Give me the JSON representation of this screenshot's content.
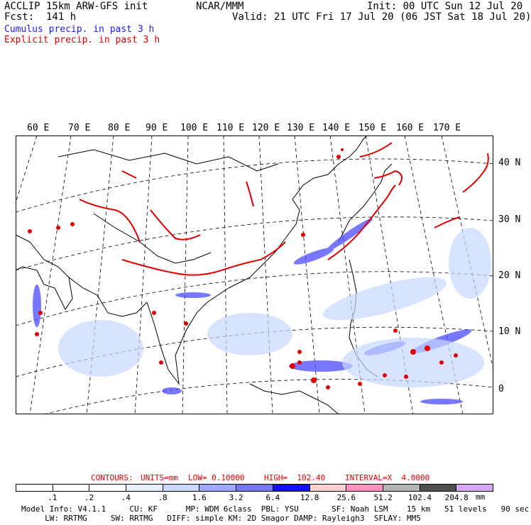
{
  "header": {
    "line1_left": "ACCLIP 15km ARW-GFS init",
    "line1_center": "NCAR/MMM",
    "line1_right": "Init: 00 UTC Sun 12 Jul 20",
    "line2_left": "Fcst:  141 h",
    "line2_right": "Valid: 21 UTC Fri 17 Jul 20 (06 JST Sat 18 Jul 20)",
    "legend_cumulus": "Cumulus precip. in past 3 h",
    "legend_explicit": "Explicit precip. in past 3 h",
    "colors": {
      "cumulus": "#1a1aff",
      "explicit": "#e00000"
    }
  },
  "map": {
    "lon_labels": [
      "60 E",
      "70 E",
      "80 E",
      "90 E",
      "100 E",
      "110 E",
      "120 E",
      "130 E",
      "140 E",
      "150 E",
      "160 E",
      "170 E"
    ],
    "lat_labels": [
      "40 N",
      "30 N",
      "20 N",
      "10 N",
      "0"
    ]
  },
  "contours": {
    "label": "CONTOURS:",
    "units": "UNITS=mm",
    "low": "LOW= 0.10000",
    "high": "HIGH=  102.40",
    "interval": "INTERVAL=X  4.0000"
  },
  "colorbar": {
    "labels": [
      ".1",
      ".2",
      ".4",
      ".8",
      "1.6",
      "3.2",
      "6.4",
      "12.8",
      "25.6",
      "51.2",
      "102.4",
      "204.8"
    ],
    "units": "mm",
    "colors": [
      "#ffffff",
      "#ffffff",
      "#ffffff",
      "#e6efff",
      "#c8d8ff",
      "#a0a8ff",
      "#7878ff",
      "#1010ff",
      "#ffd0d0",
      "#ff90c0",
      "#b4b4b4",
      "#505050",
      "#d8a8ff"
    ]
  },
  "model_info": {
    "line1": "Model Info: V4.1.1     CU: KF      MP: WDM 6class  PBL: YSU       SF: Noah LSM    15 km   51 levels   90 sec",
    "line2": "     LW: RRTMG     SW: RRTMG   DIFF: simple KM: 2D Smagor DAMP: Rayleigh3  SFLAY: MM5"
  }
}
